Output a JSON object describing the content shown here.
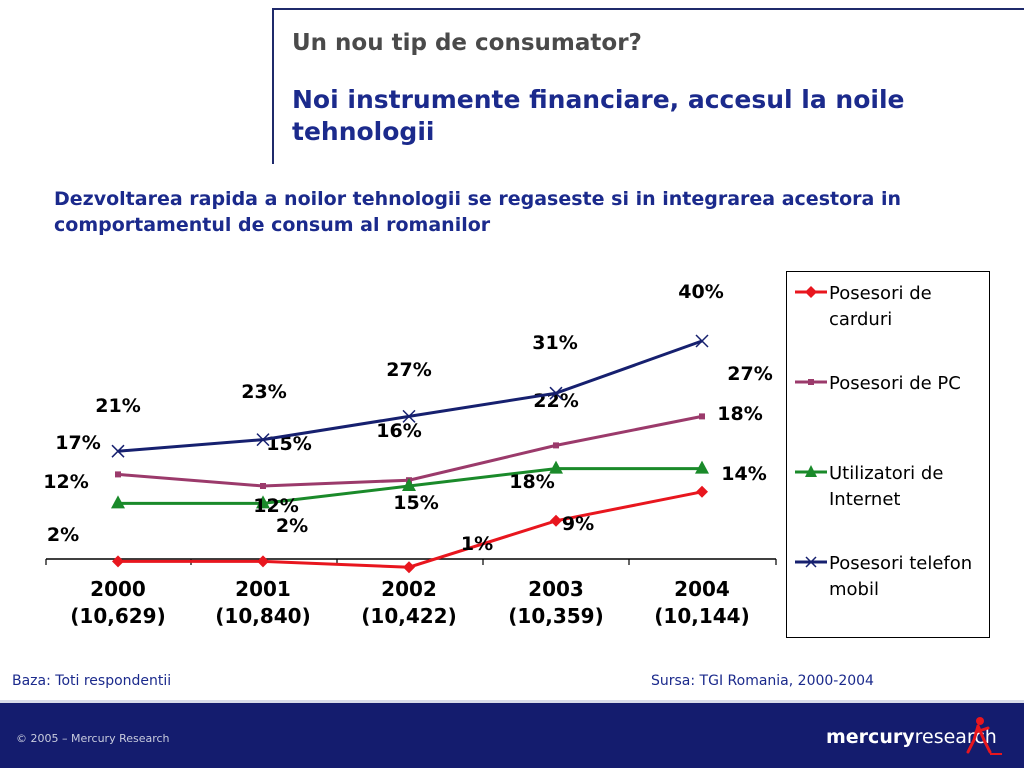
{
  "header": {
    "title": "Un nou tip de consumator?",
    "subtitle": "Noi instrumente financiare, accesul la noile tehnologii"
  },
  "slide": {
    "statement": "Dezvoltarea rapida a noilor tehnologii se regaseste si in integrarea acestora in comportamentul de consum al romanilor"
  },
  "chart_data": {
    "type": "line",
    "categories": [
      "2000",
      "2001",
      "2002",
      "2003",
      "2004"
    ],
    "category_sublabels": [
      "(10,629)",
      "(10,840)",
      "(10,422)",
      "(10,359)",
      "(10,144)"
    ],
    "ylim": [
      0,
      45
    ],
    "grid": false,
    "legend_position": "right",
    "series": [
      {
        "name": "Posesori de carduri",
        "values": [
          2,
          2,
          1,
          9,
          14
        ],
        "labels": [
          "2%",
          "2%",
          "1%",
          "9%",
          "14%"
        ],
        "color": "#e8161e",
        "marker": "diamond"
      },
      {
        "name": "Posesori de PC",
        "values": [
          17,
          15,
          16,
          22,
          27
        ],
        "labels": [
          "17%",
          "15%",
          "16%",
          "22%",
          "27%"
        ],
        "color": "#9b3a6b",
        "marker": "square"
      },
      {
        "name": "Utilizatori de Internet",
        "values": [
          12,
          12,
          15,
          18,
          18
        ],
        "labels": [
          "12%",
          "12%",
          "15%",
          "18%",
          "18%"
        ],
        "color": "#1a8a2a",
        "marker": "triangle"
      },
      {
        "name": "Posesori telefon mobil",
        "values": [
          21,
          23,
          27,
          31,
          40
        ],
        "labels": [
          "21%",
          "23%",
          "27%",
          "31%",
          "40%"
        ],
        "color": "#16206f",
        "marker": "x"
      }
    ]
  },
  "footnotes": {
    "base": "Baza: Toti respondentii",
    "source": "Sursa: TGI Romania, 2000-2004"
  },
  "footer": {
    "copyright": "© 2005 – Mercury Research",
    "logo_bold": "mercury",
    "logo_light": "research"
  }
}
